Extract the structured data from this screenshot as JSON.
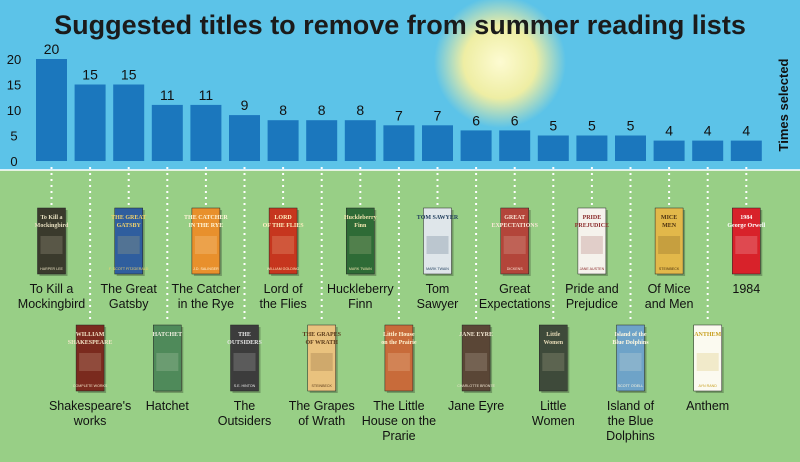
{
  "title": "Suggested titles to remove from summer reading lists",
  "colors": {
    "sky": "#5cc3e8",
    "grass": "#98cf86",
    "bar": "#1b77bd",
    "sun": "#fbf5b0",
    "title": "#1b1b1b",
    "dots": "#ffffff"
  },
  "chart_data": {
    "type": "bar",
    "title": "Suggested titles to remove from summer reading lists",
    "xlabel": "",
    "ylabel": "Times selected",
    "ylim": [
      0,
      20
    ],
    "yticks": [
      0,
      5,
      10,
      15,
      20
    ],
    "grid": false,
    "categories": [
      "To Kill a Mockingbird",
      "Shakespeare's works",
      "The Great Gatsby",
      "Hatchet",
      "The Catcher in the Rye",
      "The Outsiders",
      "Lord of the Flies",
      "The Grapes of Wrath",
      "Huckleberry Finn",
      "The Little House on the Prarie",
      "Tom Sawyer",
      "Jane Eyre",
      "Great Expectations",
      "Little Women",
      "Pride and Prejudice",
      "Island of the Blue Dolphins",
      "Of Mice and Men",
      "Anthem",
      "1984"
    ],
    "values": [
      20,
      15,
      15,
      11,
      11,
      9,
      8,
      8,
      8,
      7,
      7,
      6,
      6,
      5,
      5,
      5,
      4,
      4,
      4
    ]
  },
  "books": [
    {
      "label": [
        "To Kill a",
        "Mockingbird"
      ],
      "cover_text": [
        "To Kill a",
        "Mockingbird"
      ],
      "cover_bg": "#3a3a2c",
      "cover_fg": "#e8e0c0",
      "cover_author": "HARPER LEE"
    },
    {
      "label": [
        "Shakespeare's",
        "works"
      ],
      "cover_text": [
        "WILLIAM",
        "SHAKESPEARE"
      ],
      "cover_bg": "#7a2a1e",
      "cover_fg": "#f4e6c8",
      "cover_author": "COMPLETE WORKS"
    },
    {
      "label": [
        "The Great",
        "Gatsby"
      ],
      "cover_text": [
        "THE GREAT",
        "GATSBY"
      ],
      "cover_bg": "#2f5e9e",
      "cover_fg": "#f2d36b",
      "cover_author": "F. SCOTT FITZGERALD"
    },
    {
      "label": [
        "Hatchet"
      ],
      "cover_text": [
        "HATCHET"
      ],
      "cover_bg": "#4f8a5a",
      "cover_fg": "#f0f0e0",
      "cover_author": ""
    },
    {
      "label": [
        "The Catcher",
        "in the Rye"
      ],
      "cover_text": [
        "THE CATCHER",
        "IN THE RYE"
      ],
      "cover_bg": "#e8902c",
      "cover_fg": "#fff5d8",
      "cover_author": "J.D. SALINGER"
    },
    {
      "label": [
        "The",
        "Outsiders"
      ],
      "cover_text": [
        "THE",
        "OUTSIDERS"
      ],
      "cover_bg": "#3c3c3c",
      "cover_fg": "#e8e8e8",
      "cover_author": "S.E. HINTON"
    },
    {
      "label": [
        "Lord of",
        "the Flies"
      ],
      "cover_text": [
        "LORD",
        "OF THE FLIES"
      ],
      "cover_bg": "#c6361e",
      "cover_fg": "#fff0c0",
      "cover_author": "WILLIAM GOLDING"
    },
    {
      "label": [
        "The Grapes",
        "of Wrath"
      ],
      "cover_text": [
        "THE GRAPES",
        "OF WRATH"
      ],
      "cover_bg": "#e9c27e",
      "cover_fg": "#5a3a1a",
      "cover_author": "STEINBECK"
    },
    {
      "label": [
        "Huckleberry",
        "Finn"
      ],
      "cover_text": [
        "Huckleberry",
        "Finn"
      ],
      "cover_bg": "#2e6b36",
      "cover_fg": "#f2e6b0",
      "cover_author": "MARK TWAIN"
    },
    {
      "label": [
        "The Little",
        "House on the",
        "Prarie"
      ],
      "cover_text": [
        "Little House",
        "on the Prairie"
      ],
      "cover_bg": "#c86b3a",
      "cover_fg": "#fff2d0",
      "cover_author": ""
    },
    {
      "label": [
        "Tom",
        "Sawyer"
      ],
      "cover_text": [
        "TOM SAWYER"
      ],
      "cover_bg": "#dfe6ea",
      "cover_fg": "#1c3a5a",
      "cover_author": "MARK TWAIN"
    },
    {
      "label": [
        "Jane Eyre"
      ],
      "cover_text": [
        "JANE EYRE"
      ],
      "cover_bg": "#5a4636",
      "cover_fg": "#f0e4d0",
      "cover_author": "CHARLOTTE BRONTE"
    },
    {
      "label": [
        "Great",
        "Expectations"
      ],
      "cover_text": [
        "GREAT",
        "EXPECTATIONS"
      ],
      "cover_bg": "#b3453a",
      "cover_fg": "#fbe8d8",
      "cover_author": "DICKENS"
    },
    {
      "label": [
        "Little",
        "Women"
      ],
      "cover_text": [
        "Little",
        "Women"
      ],
      "cover_bg": "#3e4a3a",
      "cover_fg": "#e8dcb8",
      "cover_author": ""
    },
    {
      "label": [
        "Pride and",
        "Prejudice"
      ],
      "cover_text": [
        "PRIDE",
        "PREJUDICE"
      ],
      "cover_bg": "#f5f2ec",
      "cover_fg": "#8a2a2a",
      "cover_author": "JANE AUSTEN"
    },
    {
      "label": [
        "Island of",
        "the Blue",
        "Dolphins"
      ],
      "cover_text": [
        "Island of the",
        "Blue Dolphins"
      ],
      "cover_bg": "#6ea3c8",
      "cover_fg": "#fff8e0",
      "cover_author": "SCOTT O'DELL"
    },
    {
      "label": [
        "Of Mice",
        "and Men"
      ],
      "cover_text": [
        "MICE",
        "MEN"
      ],
      "cover_bg": "#e2b84a",
      "cover_fg": "#4a3010",
      "cover_author": "STEINBECK"
    },
    {
      "label": [
        "Anthem"
      ],
      "cover_text": [
        "ANTHEM"
      ],
      "cover_bg": "#fbfaf0",
      "cover_fg": "#c8a020",
      "cover_author": "AYN RAND"
    },
    {
      "label": [
        "1984"
      ],
      "cover_text": [
        "1984",
        "George Orwell"
      ],
      "cover_bg": "#d8222a",
      "cover_fg": "#ffffff",
      "cover_author": ""
    }
  ]
}
